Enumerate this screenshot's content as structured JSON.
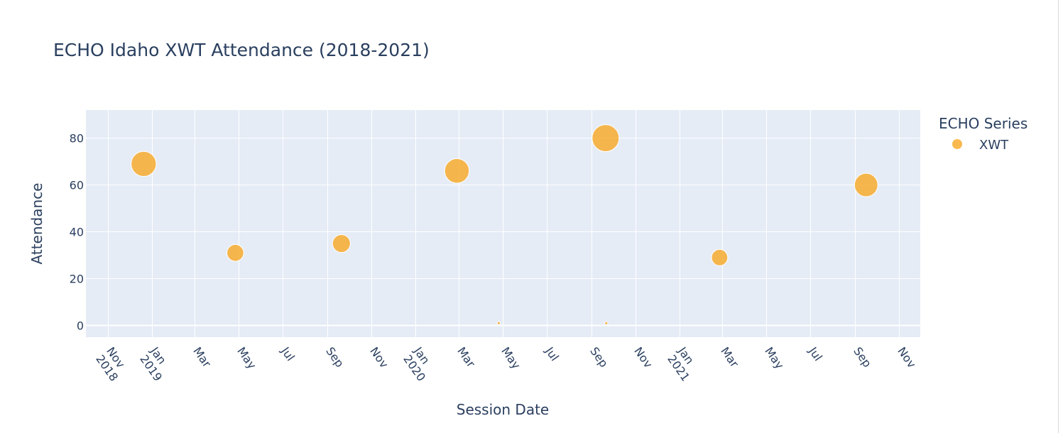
{
  "chart_data": {
    "type": "scatter",
    "title": "ECHO Idaho XWT Attendance (2018-2021)",
    "xlabel": "Session Date",
    "ylabel": "Attendance",
    "xlim": [
      "2018-10-01",
      "2021-11-30"
    ],
    "ylim": [
      -5,
      92
    ],
    "yticks": [
      0,
      20,
      40,
      60,
      80
    ],
    "xticks": [
      {
        "date": "2018-11-01",
        "label": "Nov",
        "year": "2018"
      },
      {
        "date": "2019-01-01",
        "label": "Jan",
        "year": "2019"
      },
      {
        "date": "2019-03-01",
        "label": "Mar",
        "year": ""
      },
      {
        "date": "2019-05-01",
        "label": "May",
        "year": ""
      },
      {
        "date": "2019-07-01",
        "label": "Jul",
        "year": ""
      },
      {
        "date": "2019-09-01",
        "label": "Sep",
        "year": ""
      },
      {
        "date": "2019-11-01",
        "label": "Nov",
        "year": ""
      },
      {
        "date": "2020-01-01",
        "label": "Jan",
        "year": "2020"
      },
      {
        "date": "2020-03-01",
        "label": "Mar",
        "year": ""
      },
      {
        "date": "2020-05-01",
        "label": "May",
        "year": ""
      },
      {
        "date": "2020-07-01",
        "label": "Jul",
        "year": ""
      },
      {
        "date": "2020-09-01",
        "label": "Sep",
        "year": ""
      },
      {
        "date": "2020-11-01",
        "label": "Nov",
        "year": ""
      },
      {
        "date": "2021-01-01",
        "label": "Jan",
        "year": "2021"
      },
      {
        "date": "2021-03-01",
        "label": "Mar",
        "year": ""
      },
      {
        "date": "2021-05-01",
        "label": "May",
        "year": ""
      },
      {
        "date": "2021-07-01",
        "label": "Jul",
        "year": ""
      },
      {
        "date": "2021-09-01",
        "label": "Sep",
        "year": ""
      },
      {
        "date": "2021-11-01",
        "label": "Nov",
        "year": ""
      }
    ],
    "legend": {
      "title": "ECHO Series",
      "placement": "right"
    },
    "grid": true,
    "series": [
      {
        "name": "XWT",
        "color": "#f7a823",
        "points": [
          {
            "x": "2018-12-20",
            "y": 69
          },
          {
            "x": "2019-04-26",
            "y": 31
          },
          {
            "x": "2019-09-20",
            "y": 35
          },
          {
            "x": "2020-02-27",
            "y": 66
          },
          {
            "x": "2020-04-25",
            "y": 1
          },
          {
            "x": "2020-09-20",
            "y": 80
          },
          {
            "x": "2020-09-21",
            "y": 1
          },
          {
            "x": "2021-02-25",
            "y": 29
          },
          {
            "x": "2021-09-16",
            "y": 60
          }
        ]
      }
    ]
  }
}
